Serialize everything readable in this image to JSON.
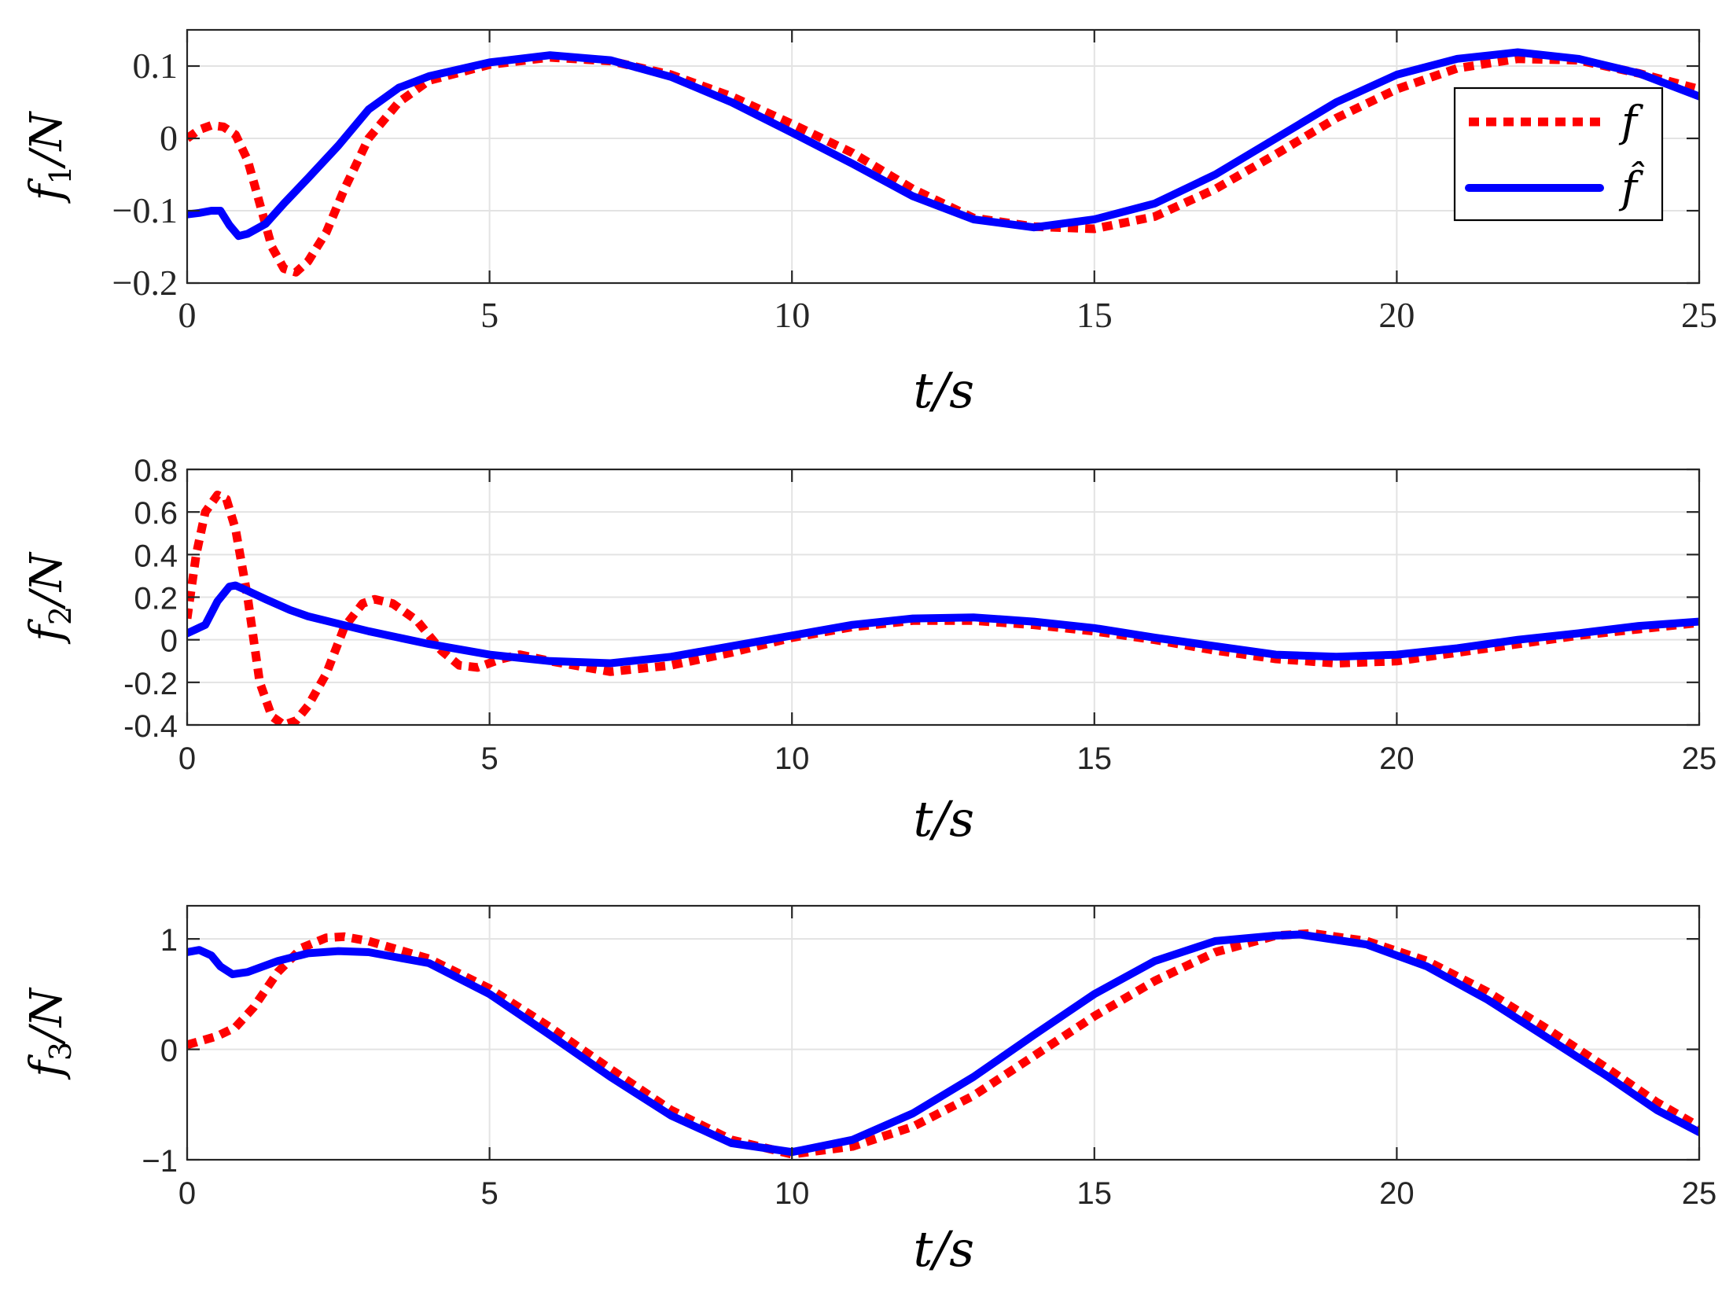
{
  "colors": {
    "f": "#ff0000",
    "fhat": "#0000ff",
    "axis": "#262626",
    "grid": "#e3e3e3"
  },
  "legend": {
    "items": [
      {
        "series": "f",
        "label": "f"
      },
      {
        "series": "fhat",
        "label": "f̂"
      }
    ]
  },
  "chart_data": [
    {
      "type": "line",
      "xlabel": "t/s",
      "ylabel": "f1/N",
      "xlim": [
        0,
        25
      ],
      "ylim": [
        -0.2,
        0.15
      ],
      "xticks": [
        "0",
        "5",
        "10",
        "15",
        "20",
        "25"
      ],
      "yticks": [
        {
          "value": 0.1,
          "label": "0.1"
        },
        {
          "value": 0,
          "label": "0"
        },
        {
          "value": -0.1,
          "label": "−0.1"
        },
        {
          "value": -0.2,
          "label": "−0.2"
        }
      ],
      "grid": true,
      "legend_position": "top-right",
      "series": [
        {
          "key": "f",
          "points": [
            [
              0,
              0.0
            ],
            [
              0.2,
              0.012
            ],
            [
              0.4,
              0.018
            ],
            [
              0.6,
              0.016
            ],
            [
              0.8,
              0.005
            ],
            [
              1.0,
              -0.03
            ],
            [
              1.2,
              -0.09
            ],
            [
              1.4,
              -0.15
            ],
            [
              1.6,
              -0.18
            ],
            [
              1.8,
              -0.185
            ],
            [
              2.0,
              -0.17
            ],
            [
              2.3,
              -0.13
            ],
            [
              2.6,
              -0.07
            ],
            [
              3.0,
              0.0
            ],
            [
              3.5,
              0.05
            ],
            [
              4.0,
              0.08
            ],
            [
              5.0,
              0.102
            ],
            [
              6.0,
              0.112
            ],
            [
              7.0,
              0.107
            ],
            [
              8.0,
              0.088
            ],
            [
              9.0,
              0.058
            ],
            [
              10.0,
              0.02
            ],
            [
              11.0,
              -0.02
            ],
            [
              12.0,
              -0.07
            ],
            [
              13.0,
              -0.11
            ],
            [
              14.0,
              -0.122
            ],
            [
              15.0,
              -0.125
            ],
            [
              16.0,
              -0.108
            ],
            [
              17.0,
              -0.07
            ],
            [
              18.0,
              -0.022
            ],
            [
              19.0,
              0.028
            ],
            [
              20.0,
              0.068
            ],
            [
              21.0,
              0.097
            ],
            [
              22.0,
              0.11
            ],
            [
              23.0,
              0.108
            ],
            [
              24.0,
              0.09
            ],
            [
              25.0,
              0.068
            ]
          ]
        },
        {
          "key": "fhat",
          "points": [
            [
              0,
              -0.105
            ],
            [
              0.2,
              -0.103
            ],
            [
              0.4,
              -0.1
            ],
            [
              0.55,
              -0.1
            ],
            [
              0.7,
              -0.12
            ],
            [
              0.85,
              -0.135
            ],
            [
              1.0,
              -0.132
            ],
            [
              1.3,
              -0.118
            ],
            [
              1.6,
              -0.09
            ],
            [
              2.0,
              -0.055
            ],
            [
              2.5,
              -0.01
            ],
            [
              3.0,
              0.04
            ],
            [
              3.5,
              0.07
            ],
            [
              4.0,
              0.086
            ],
            [
              5.0,
              0.105
            ],
            [
              6.0,
              0.115
            ],
            [
              7.0,
              0.108
            ],
            [
              8.0,
              0.085
            ],
            [
              9.0,
              0.05
            ],
            [
              10.0,
              0.008
            ],
            [
              11.0,
              -0.035
            ],
            [
              12.0,
              -0.08
            ],
            [
              13.0,
              -0.112
            ],
            [
              14.0,
              -0.123
            ],
            [
              15.0,
              -0.112
            ],
            [
              16.0,
              -0.09
            ],
            [
              17.0,
              -0.05
            ],
            [
              18.0,
              0.0
            ],
            [
              19.0,
              0.05
            ],
            [
              20.0,
              0.088
            ],
            [
              21.0,
              0.11
            ],
            [
              22.0,
              0.119
            ],
            [
              23.0,
              0.11
            ],
            [
              24.0,
              0.09
            ],
            [
              25.0,
              0.058
            ]
          ]
        }
      ]
    },
    {
      "type": "line",
      "xlabel": "t/s",
      "ylabel": "f2/N",
      "xlim": [
        0,
        25
      ],
      "ylim": [
        -0.4,
        0.8
      ],
      "xticks": [
        "0",
        "5",
        "10",
        "15",
        "20",
        "25"
      ],
      "yticks": [
        {
          "value": 0.8,
          "label": "0.8"
        },
        {
          "value": 0.6,
          "label": "0.6"
        },
        {
          "value": 0.4,
          "label": "0.4"
        },
        {
          "value": 0.2,
          "label": "0.2"
        },
        {
          "value": 0,
          "label": "0"
        },
        {
          "value": -0.2,
          "label": "-0.2"
        },
        {
          "value": -0.4,
          "label": "-0.4"
        }
      ],
      "grid": true,
      "series": [
        {
          "key": "f",
          "points": [
            [
              0,
              0.1
            ],
            [
              0.15,
              0.4
            ],
            [
              0.3,
              0.6
            ],
            [
              0.5,
              0.68
            ],
            [
              0.65,
              0.66
            ],
            [
              0.8,
              0.52
            ],
            [
              1.0,
              0.2
            ],
            [
              1.2,
              -0.2
            ],
            [
              1.4,
              -0.36
            ],
            [
              1.6,
              -0.4
            ],
            [
              1.8,
              -0.38
            ],
            [
              2.0,
              -0.31
            ],
            [
              2.3,
              -0.16
            ],
            [
              2.6,
              0.06
            ],
            [
              2.9,
              0.17
            ],
            [
              3.1,
              0.19
            ],
            [
              3.4,
              0.17
            ],
            [
              3.8,
              0.09
            ],
            [
              4.2,
              -0.05
            ],
            [
              4.5,
              -0.12
            ],
            [
              4.8,
              -0.13
            ],
            [
              5.2,
              -0.09
            ],
            [
              5.5,
              -0.07
            ],
            [
              6.0,
              -0.1
            ],
            [
              7.0,
              -0.15
            ],
            [
              8.0,
              -0.12
            ],
            [
              9.0,
              -0.06
            ],
            [
              10.0,
              0.01
            ],
            [
              11.0,
              0.06
            ],
            [
              12.0,
              0.09
            ],
            [
              13.0,
              0.09
            ],
            [
              14.0,
              0.07
            ],
            [
              15.0,
              0.04
            ],
            [
              16.0,
              0.0
            ],
            [
              17.0,
              -0.05
            ],
            [
              18.0,
              -0.09
            ],
            [
              19.0,
              -0.11
            ],
            [
              20.0,
              -0.1
            ],
            [
              21.0,
              -0.06
            ],
            [
              22.0,
              -0.02
            ],
            [
              23.0,
              0.02
            ],
            [
              24.0,
              0.05
            ],
            [
              25.0,
              0.08
            ]
          ]
        },
        {
          "key": "fhat",
          "points": [
            [
              0,
              0.03
            ],
            [
              0.3,
              0.07
            ],
            [
              0.5,
              0.18
            ],
            [
              0.7,
              0.25
            ],
            [
              0.8,
              0.255
            ],
            [
              1.0,
              0.23
            ],
            [
              1.3,
              0.19
            ],
            [
              1.7,
              0.14
            ],
            [
              2.0,
              0.11
            ],
            [
              3.0,
              0.04
            ],
            [
              4.0,
              -0.02
            ],
            [
              5.0,
              -0.07
            ],
            [
              6.0,
              -0.1
            ],
            [
              7.0,
              -0.11
            ],
            [
              8.0,
              -0.08
            ],
            [
              9.0,
              -0.03
            ],
            [
              10.0,
              0.02
            ],
            [
              11.0,
              0.07
            ],
            [
              12.0,
              0.1
            ],
            [
              13.0,
              0.105
            ],
            [
              14.0,
              0.085
            ],
            [
              15.0,
              0.055
            ],
            [
              16.0,
              0.01
            ],
            [
              17.0,
              -0.03
            ],
            [
              18.0,
              -0.07
            ],
            [
              19.0,
              -0.08
            ],
            [
              20.0,
              -0.07
            ],
            [
              21.0,
              -0.04
            ],
            [
              22.0,
              0.0
            ],
            [
              23.0,
              0.03
            ],
            [
              24.0,
              0.065
            ],
            [
              25.0,
              0.085
            ]
          ]
        }
      ]
    },
    {
      "type": "line",
      "xlabel": "t/s",
      "ylabel": "f3/N",
      "xlim": [
        0,
        25
      ],
      "ylim": [
        -1,
        1.3
      ],
      "xticks": [
        "0",
        "5",
        "10",
        "15",
        "20",
        "25"
      ],
      "yticks": [
        {
          "value": 1,
          "label": "1"
        },
        {
          "value": 0,
          "label": "0"
        },
        {
          "value": -1,
          "label": "−1"
        }
      ],
      "grid": true,
      "series": [
        {
          "key": "f",
          "points": [
            [
              0,
              0.04
            ],
            [
              0.5,
              0.12
            ],
            [
              0.8,
              0.2
            ],
            [
              1.1,
              0.38
            ],
            [
              1.5,
              0.7
            ],
            [
              1.9,
              0.92
            ],
            [
              2.3,
              1.01
            ],
            [
              2.6,
              1.02
            ],
            [
              3.0,
              0.98
            ],
            [
              4.0,
              0.82
            ],
            [
              5.0,
              0.55
            ],
            [
              6.0,
              0.2
            ],
            [
              7.0,
              -0.18
            ],
            [
              8.0,
              -0.55
            ],
            [
              9.0,
              -0.82
            ],
            [
              10.0,
              -0.95
            ],
            [
              11.0,
              -0.88
            ],
            [
              12.0,
              -0.7
            ],
            [
              13.0,
              -0.42
            ],
            [
              14.0,
              -0.06
            ],
            [
              15.0,
              0.3
            ],
            [
              16.0,
              0.62
            ],
            [
              17.0,
              0.88
            ],
            [
              18.0,
              1.03
            ],
            [
              18.6,
              1.05
            ],
            [
              19.5,
              0.98
            ],
            [
              20.5,
              0.8
            ],
            [
              21.5,
              0.52
            ],
            [
              22.5,
              0.18
            ],
            [
              23.5,
              -0.18
            ],
            [
              24.3,
              -0.48
            ],
            [
              25.0,
              -0.7
            ]
          ]
        },
        {
          "key": "fhat",
          "points": [
            [
              0,
              0.88
            ],
            [
              0.2,
              0.9
            ],
            [
              0.4,
              0.85
            ],
            [
              0.55,
              0.75
            ],
            [
              0.75,
              0.68
            ],
            [
              1.0,
              0.7
            ],
            [
              1.5,
              0.8
            ],
            [
              2.0,
              0.87
            ],
            [
              2.5,
              0.89
            ],
            [
              3.0,
              0.88
            ],
            [
              4.0,
              0.78
            ],
            [
              5.0,
              0.5
            ],
            [
              6.0,
              0.13
            ],
            [
              7.0,
              -0.25
            ],
            [
              8.0,
              -0.6
            ],
            [
              9.0,
              -0.85
            ],
            [
              10.0,
              -0.93
            ],
            [
              11.0,
              -0.82
            ],
            [
              12.0,
              -0.58
            ],
            [
              13.0,
              -0.25
            ],
            [
              14.0,
              0.13
            ],
            [
              15.0,
              0.5
            ],
            [
              16.0,
              0.8
            ],
            [
              17.0,
              0.98
            ],
            [
              18.0,
              1.03
            ],
            [
              18.4,
              1.04
            ],
            [
              19.5,
              0.95
            ],
            [
              20.5,
              0.75
            ],
            [
              21.5,
              0.45
            ],
            [
              22.5,
              0.1
            ],
            [
              23.5,
              -0.25
            ],
            [
              24.3,
              -0.55
            ],
            [
              25.0,
              -0.75
            ]
          ]
        }
      ]
    }
  ]
}
